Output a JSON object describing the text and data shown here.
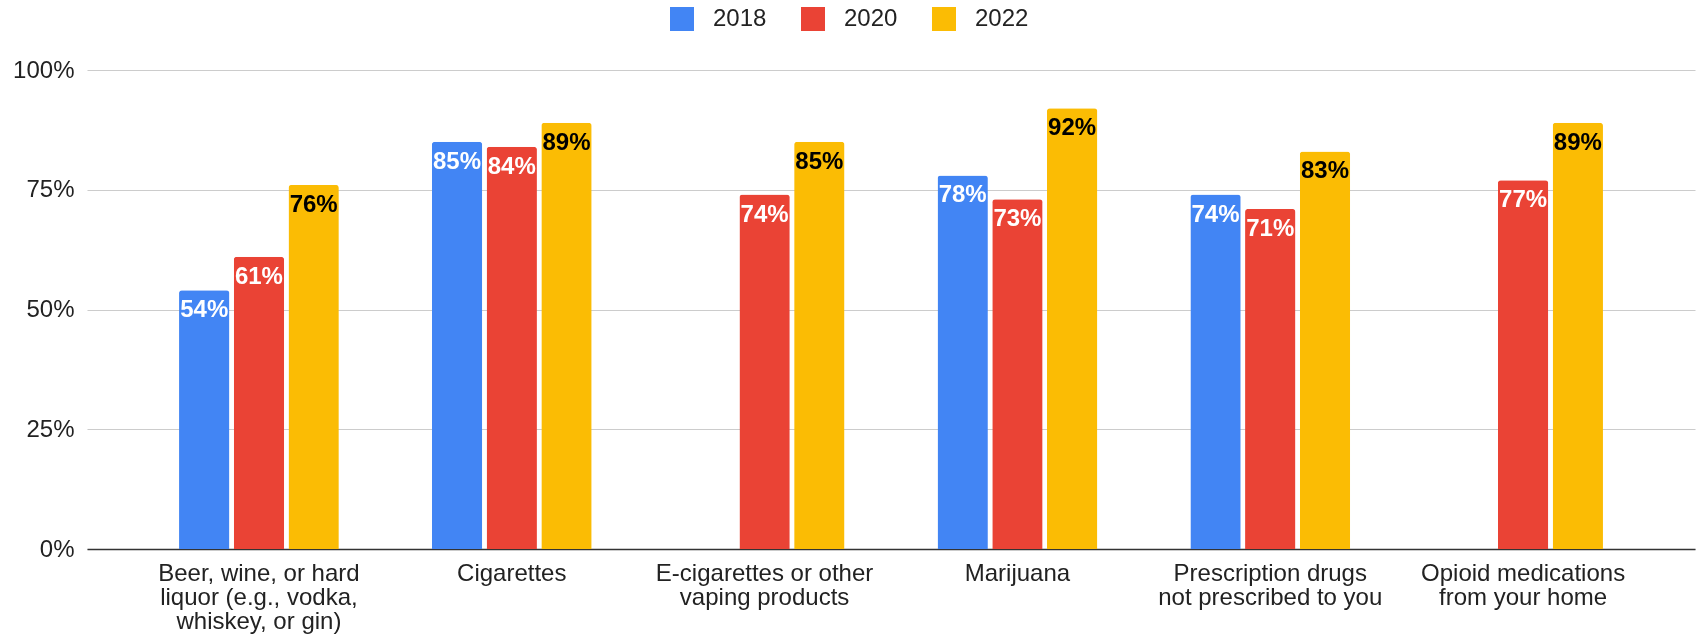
{
  "chart_data": {
    "type": "bar",
    "categories": [
      "Beer, wine, or hard liquor (e.g., vodka, whiskey, or gin)",
      "Cigarettes",
      "E-cigarettes or other vaping products",
      "Marijuana",
      "Prescription drugs not prescribed to you",
      "Opioid medications from your home"
    ],
    "series": [
      {
        "name": "2018",
        "color": "#4285f4",
        "values": [
          54,
          85,
          null,
          78,
          74,
          null
        ],
        "value_labels": [
          "54%",
          "85%",
          null,
          "78%",
          "74%",
          null
        ]
      },
      {
        "name": "2020",
        "color": "#ea4335",
        "values": [
          61,
          84,
          74,
          73,
          71,
          77
        ],
        "value_labels": [
          "61%",
          "84%",
          "74%",
          "73%",
          "71%",
          "77%"
        ]
      },
      {
        "name": "2022",
        "color": "#fbbc04",
        "values": [
          76,
          89,
          85,
          92,
          83,
          89
        ],
        "value_labels": [
          "76%",
          "89%",
          "85%",
          "92%",
          "83%",
          "89%"
        ]
      }
    ],
    "ylim": [
      0,
      100
    ],
    "yticks": [
      {
        "value": 0,
        "label": "0%"
      },
      {
        "value": 25,
        "label": "25%"
      },
      {
        "value": 50,
        "label": "50%"
      },
      {
        "value": 75,
        "label": "75%"
      },
      {
        "value": 100,
        "label": "100%"
      }
    ],
    "grid": "y",
    "legend": "top"
  }
}
